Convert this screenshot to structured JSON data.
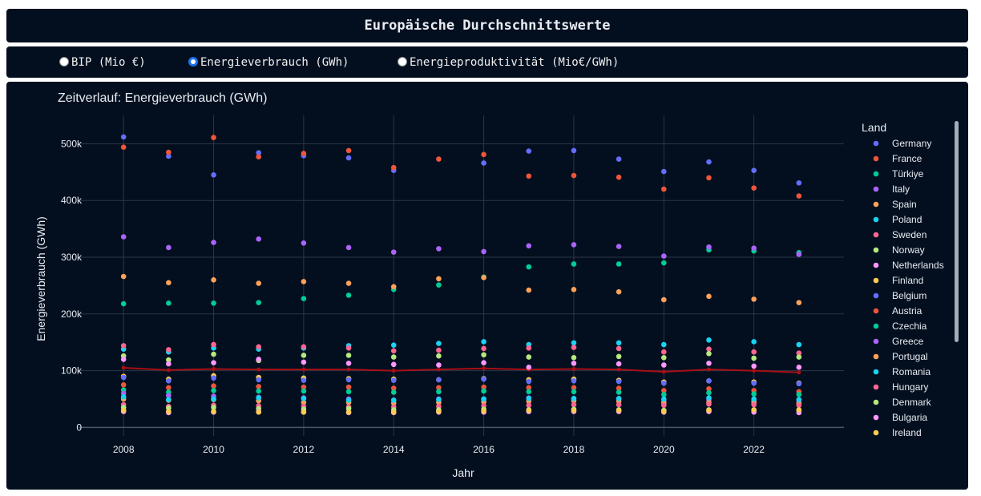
{
  "header": {
    "title": "Europäische Durchschnittswerte"
  },
  "controls": {
    "options": [
      {
        "label": "BIP (Mio €)",
        "checked": false
      },
      {
        "label": "Energieverbrauch (GWh)",
        "checked": true
      },
      {
        "label": "Energieproduktivität (Mio€/GWh)",
        "checked": false
      }
    ]
  },
  "colors": {
    "background": "#030f1f",
    "grid": "#2b3648",
    "text": "#e8ecf2",
    "average_line": "#a80f16",
    "radio_selected": "#1a73e8"
  },
  "chart_data": {
    "type": "scatter",
    "title": "Zeitverlauf: Energieverbrauch (GWh)",
    "xlabel": "Jahr",
    "ylabel": "Energieverbrauch (GWh)",
    "xlim": [
      2007,
      2024
    ],
    "ylim": [
      -15000,
      550000
    ],
    "x_ticks": [
      2008,
      2010,
      2012,
      2014,
      2016,
      2018,
      2020,
      2022
    ],
    "y_ticks": [
      0,
      100000,
      200000,
      300000,
      400000,
      500000
    ],
    "y_tick_labels": [
      "0",
      "100k",
      "200k",
      "300k",
      "400k",
      "500k"
    ],
    "grid": true,
    "legend_title": "Land",
    "legend_position": "right",
    "x": [
      2008,
      2009,
      2010,
      2011,
      2012,
      2013,
      2014,
      2015,
      2016,
      2017,
      2018,
      2019,
      2020,
      2021,
      2022,
      2023
    ],
    "series": [
      {
        "name": "Germany",
        "color": "#636efa",
        "values": [
          512000,
          478000,
          445000,
          484000,
          479000,
          475000,
          453000,
          null,
          466000,
          487000,
          488000,
          473000,
          451000,
          468000,
          453000,
          431000
        ]
      },
      {
        "name": "France",
        "color": "#ef553b",
        "values": [
          494000,
          485000,
          511000,
          477000,
          483000,
          488000,
          458000,
          473000,
          481000,
          443000,
          444000,
          441000,
          420000,
          440000,
          422000,
          408000
        ]
      },
      {
        "name": "Türkiye",
        "color": "#00cc96",
        "values": [
          218000,
          219000,
          219000,
          220000,
          227000,
          233000,
          243000,
          251000,
          265000,
          283000,
          288000,
          288000,
          290000,
          313000,
          311000,
          308000
        ]
      },
      {
        "name": "Italy",
        "color": "#ab63fa",
        "values": [
          336000,
          317000,
          326000,
          332000,
          325000,
          317000,
          309000,
          315000,
          310000,
          320000,
          322000,
          319000,
          302000,
          318000,
          316000,
          305000
        ]
      },
      {
        "name": "Spain",
        "color": "#ffa15a",
        "values": [
          266000,
          255000,
          260000,
          254000,
          257000,
          254000,
          248000,
          262000,
          264000,
          242000,
          243000,
          239000,
          225000,
          231000,
          226000,
          220000
        ]
      },
      {
        "name": "Poland",
        "color": "#19d3f3",
        "values": [
          138000,
          133000,
          140000,
          138000,
          140000,
          144000,
          145000,
          148000,
          151000,
          146000,
          149000,
          149000,
          146000,
          154000,
          151000,
          146000
        ]
      },
      {
        "name": "Sweden",
        "color": "#ff6692",
        "values": [
          144000,
          137000,
          146000,
          142000,
          142000,
          140000,
          135000,
          136000,
          139000,
          140000,
          141000,
          139000,
          133000,
          138000,
          133000,
          131000
        ]
      },
      {
        "name": "Norway",
        "color": "#b6e880",
        "values": [
          126000,
          119000,
          129000,
          118000,
          127000,
          127000,
          124000,
          126000,
          128000,
          124000,
          123000,
          125000,
          123000,
          130000,
          122000,
          124000
        ]
      },
      {
        "name": "Netherlands",
        "color": "#ff97ff",
        "values": [
          120000,
          112000,
          114000,
          120000,
          115000,
          113000,
          111000,
          110000,
          114000,
          106000,
          113000,
          112000,
          110000,
          113000,
          108000,
          106000
        ]
      },
      {
        "name": "Finland",
        "color": "#fecb52",
        "values": [
          90000,
          85000,
          91000,
          88000,
          87000,
          86000,
          85000,
          84000,
          86000,
          84000,
          85000,
          83000,
          80000,
          82000,
          80000,
          78000
        ]
      },
      {
        "name": "Belgium",
        "color": "#636efa",
        "values": [
          88000,
          82000,
          87000,
          84000,
          83000,
          84000,
          83000,
          84000,
          85000,
          81000,
          82000,
          81000,
          78000,
          82000,
          78000,
          77000
        ]
      },
      {
        "name": "Austria",
        "color": "#ef553b",
        "values": [
          75000,
          70000,
          73000,
          72000,
          71000,
          71000,
          69000,
          70000,
          71000,
          70000,
          70000,
          69000,
          65000,
          68000,
          65000,
          63000
        ]
      },
      {
        "name": "Czechia",
        "color": "#00cc96",
        "values": [
          66000,
          62000,
          65000,
          64000,
          64000,
          63000,
          62000,
          63000,
          64000,
          63000,
          63000,
          62000,
          58000,
          61000,
          59000,
          58000
        ]
      },
      {
        "name": "Greece",
        "color": "#ab63fa",
        "values": [
          60000,
          56000,
          55000,
          53000,
          52000,
          50000,
          48000,
          50000,
          50000,
          52000,
          51000,
          50000,
          46000,
          49000,
          47000,
          46000
        ]
      },
      {
        "name": "Portugal",
        "color": "#ffa15a",
        "values": [
          50000,
          48000,
          49000,
          47000,
          44000,
          44000,
          43000,
          44000,
          45000,
          46000,
          47000,
          46000,
          43000,
          44000,
          44000,
          42000
        ]
      },
      {
        "name": "Romania",
        "color": "#19d3f3",
        "values": [
          54000,
          49000,
          50000,
          52000,
          51000,
          48000,
          48000,
          49000,
          50000,
          51000,
          51000,
          51000,
          50000,
          52000,
          50000,
          49000
        ]
      },
      {
        "name": "Hungary",
        "color": "#ff6692",
        "values": [
          40000,
          37000,
          39000,
          38000,
          37000,
          36000,
          36000,
          37000,
          38000,
          39000,
          40000,
          40000,
          39000,
          41000,
          40000,
          39000
        ]
      },
      {
        "name": "Denmark",
        "color": "#b6e880",
        "values": [
          35000,
          34000,
          35000,
          33000,
          32000,
          33000,
          31000,
          31000,
          32000,
          31000,
          32000,
          31000,
          30000,
          31000,
          30000,
          30000
        ]
      },
      {
        "name": "Bulgaria",
        "color": "#ff97ff",
        "values": [
          28000,
          26000,
          27000,
          28000,
          27000,
          26000,
          26000,
          27000,
          27000,
          28000,
          28000,
          28000,
          27000,
          28000,
          27000,
          26000
        ]
      },
      {
        "name": "Ireland",
        "color": "#fecb52",
        "values": [
          30000,
          28000,
          28000,
          27000,
          27000,
          27000,
          27000,
          28000,
          29000,
          30000,
          30000,
          30000,
          28000,
          30000,
          31000,
          31000
        ]
      }
    ],
    "average": {
      "color": "#a80f16",
      "values": [
        105000,
        101000,
        103000,
        102000,
        102000,
        102000,
        100000,
        102000,
        104000,
        102000,
        103000,
        102000,
        98000,
        102000,
        100000,
        97000
      ]
    }
  }
}
